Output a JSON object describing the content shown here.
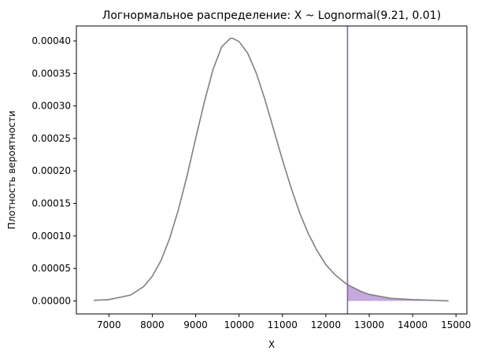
{
  "chart_data": {
    "type": "line",
    "title": "Логнормальное распределение: X ~ Lognormal(9.21, 0.01)",
    "xlabel": "X",
    "ylabel": "Плотность вероятности",
    "xlim": [
      6250,
      15250
    ],
    "ylim": [
      -2e-05,
      0.000423
    ],
    "x_ticks": [
      7000,
      8000,
      9000,
      10000,
      11000,
      12000,
      13000,
      14000,
      15000
    ],
    "x_tick_labels": [
      "7000",
      "8000",
      "9000",
      "10000",
      "11000",
      "12000",
      "13000",
      "14000",
      "15000"
    ],
    "y_ticks": [
      0,
      5e-05,
      0.0001,
      0.00015,
      0.0002,
      0.00025,
      0.0003,
      0.00035,
      0.0004
    ],
    "y_tick_labels": [
      "0.00000",
      "0.00005",
      "0.00010",
      "0.00015",
      "0.00020",
      "0.00025",
      "0.00030",
      "0.00035",
      "0.00040"
    ],
    "grid": false,
    "series": [
      {
        "x": [
          6650,
          7000,
          7500,
          7800,
          8000,
          8200,
          8400,
          8600,
          8800,
          9000,
          9200,
          9400,
          9600,
          9800,
          9850,
          10000,
          10200,
          10400,
          10600,
          10800,
          11000,
          11200,
          11400,
          11600,
          11800,
          12000,
          12200,
          12400,
          12500,
          12800,
          13000,
          13500,
          14000,
          14500,
          14830
        ],
        "y": [
          1e-06,
          2e-06,
          9e-06,
          2.2e-05,
          3.8e-05,
          6.2e-05,
          9.6e-05,
          0.00014,
          0.000192,
          0.00025,
          0.000306,
          0.000356,
          0.000391,
          0.000404,
          0.000404,
          0.000399,
          0.000381,
          0.00035,
          0.000309,
          0.000263,
          0.000217,
          0.000174,
          0.000135,
          0.000103,
          7.7e-05,
          5.6e-05,
          4.1e-05,
          3e-05,
          2.5e-05,
          1.5e-05,
          1e-05,
          4e-06,
          2e-06,
          1e-06,
          0.0
        ],
        "color": "#808080"
      }
    ],
    "threshold": {
      "x": 12500,
      "color": "#8560b8",
      "shade_color": "#c5a8dc",
      "shade": "right-tail"
    }
  }
}
